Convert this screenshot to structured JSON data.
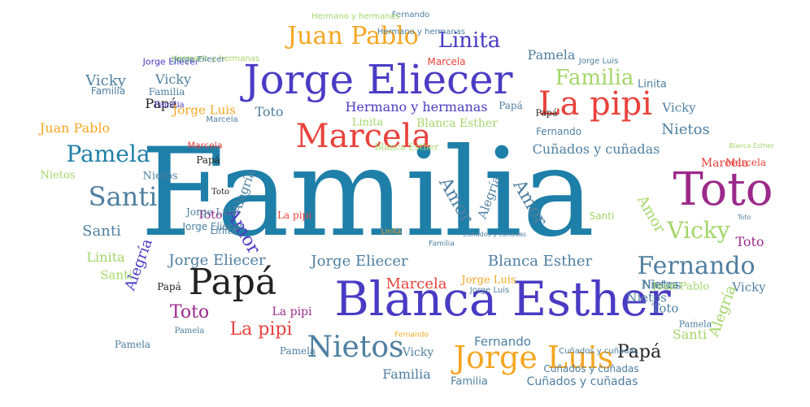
{
  "colors": {
    "teal": "#1e7fa8",
    "indigo": "#4a3bc4",
    "red": "#e8423c",
    "orange": "#f5a623",
    "green": "#a4d66b",
    "purple": "#9b2a8a",
    "dark": "#222222",
    "slate": "#4f7fa0",
    "gray": "#9a9a9a"
  },
  "words": [
    {
      "text": "Familia"
    },
    {
      "text": "Jorge Eliecer"
    },
    {
      "text": "Blanca Esther"
    },
    {
      "text": "Marcela"
    },
    {
      "text": "La pipi"
    },
    {
      "text": "Toto"
    },
    {
      "text": "Papá"
    },
    {
      "text": "Jorge Luis"
    },
    {
      "text": "Nietos"
    },
    {
      "text": "Pamela"
    },
    {
      "text": "Santi"
    },
    {
      "text": "Fernando"
    },
    {
      "text": "Juan Pablo"
    },
    {
      "text": "Linita"
    },
    {
      "text": "Vicky"
    },
    {
      "text": "Familia"
    },
    {
      "text": "Hermano y hermanas"
    },
    {
      "text": "Blanca Esther"
    },
    {
      "text": "Cuñados y cuñadas"
    },
    {
      "text": "Nietos"
    },
    {
      "text": "Amor"
    },
    {
      "text": "Amor"
    },
    {
      "text": "Amor"
    },
    {
      "text": "Alegría"
    },
    {
      "text": "Alegría"
    },
    {
      "text": "Alegría"
    },
    {
      "text": "Jorge Eliecer"
    },
    {
      "text": "Blanca Esther"
    },
    {
      "text": "Marcela"
    },
    {
      "text": "Jorge Luis"
    },
    {
      "text": "Papá"
    },
    {
      "text": "Toto"
    },
    {
      "text": "La pipi"
    },
    {
      "text": "La pipi"
    },
    {
      "text": "Pamela"
    },
    {
      "text": "Santi"
    },
    {
      "text": "Linita"
    },
    {
      "text": "Santi"
    },
    {
      "text": "Nietos"
    },
    {
      "text": "Familia"
    },
    {
      "text": "Papá"
    },
    {
      "text": "Juan Pablo"
    },
    {
      "text": "Jorge Eliecer"
    },
    {
      "text": "Hermano y hermanas"
    },
    {
      "text": "Pamela"
    },
    {
      "text": "Familia"
    },
    {
      "text": "Linita"
    },
    {
      "text": "Vicky"
    },
    {
      "text": "Nietos"
    },
    {
      "text": "Toto"
    },
    {
      "text": "Fernando"
    },
    {
      "text": "Marcela"
    },
    {
      "text": "Vicky"
    },
    {
      "text": "Toto"
    },
    {
      "text": "Familia"
    },
    {
      "text": "Fernando"
    },
    {
      "text": "Cuñados y cuñadas"
    },
    {
      "text": "Papá"
    },
    {
      "text": "Vicky"
    },
    {
      "text": "Pamela"
    },
    {
      "text": "Santi"
    },
    {
      "text": "Nietos"
    },
    {
      "text": "Linita"
    },
    {
      "text": "Jorge Luis"
    },
    {
      "text": "Papá"
    },
    {
      "text": "Toto"
    },
    {
      "text": "Fernando"
    },
    {
      "text": "Marcela"
    },
    {
      "text": "Familia"
    },
    {
      "text": "Blanca Esther"
    },
    {
      "text": "Jorge Eliecer"
    },
    {
      "text": "Cuñados y cuñadas"
    },
    {
      "text": "Marcela"
    },
    {
      "text": "Nietos"
    },
    {
      "text": "Familia"
    },
    {
      "text": "Santi"
    },
    {
      "text": "Amor"
    },
    {
      "text": "Alegría"
    },
    {
      "text": "Vicky"
    },
    {
      "text": "Pamela"
    },
    {
      "text": "Linita"
    },
    {
      "text": "Jorge Luis"
    },
    {
      "text": "Papá"
    },
    {
      "text": "Toto"
    },
    {
      "text": "Toto"
    },
    {
      "text": "Fernando"
    },
    {
      "text": "Hermano y hermanas"
    },
    {
      "text": "Hermano y hermanas"
    },
    {
      "text": "Fernando"
    },
    {
      "text": "Juan Pablo"
    },
    {
      "text": "Pamela"
    },
    {
      "text": "Jorge Luis"
    },
    {
      "text": "Linita"
    },
    {
      "text": "Jorge Eliecer"
    },
    {
      "text": "Familia"
    },
    {
      "text": "Cuñados y cuñadas"
    },
    {
      "text": "Blanca Esther"
    },
    {
      "text": "Toto"
    },
    {
      "text": "Marcela"
    },
    {
      "text": "Jorge Luis"
    },
    {
      "text": "Cuñados y cuñadas"
    },
    {
      "text": "Vicky"
    },
    {
      "text": "Jorge Eliecer"
    },
    {
      "text": "Nietos"
    },
    {
      "text": "La pipi"
    },
    {
      "text": "Papá"
    },
    {
      "text": "Marcela"
    }
  ]
}
